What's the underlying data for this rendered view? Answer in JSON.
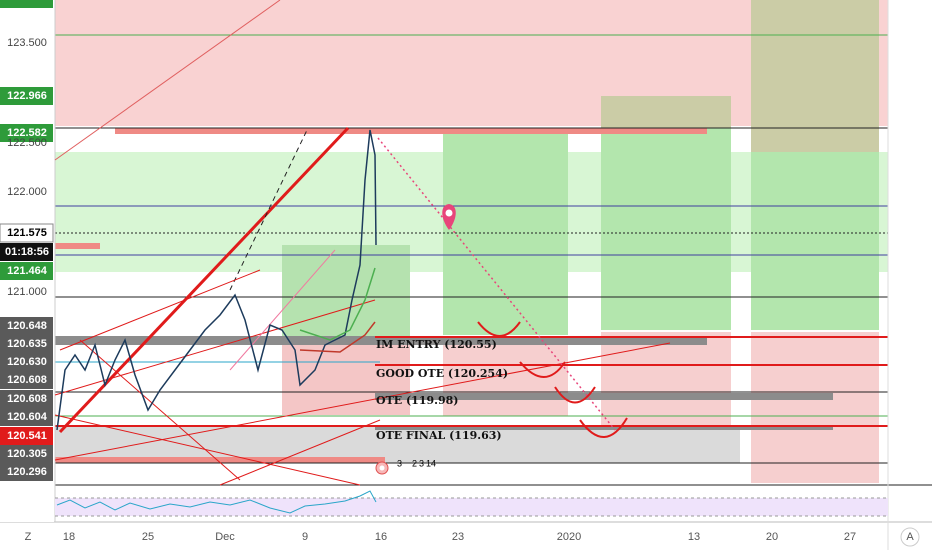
{
  "price_axis": {
    "labels": [
      "123.500",
      "122.966",
      "122.582",
      "122.500",
      "122.000",
      "121.575",
      "01:18:56",
      "121.464",
      "121.000",
      "120.648",
      "120.635",
      "120.630",
      "120.608",
      "120.608",
      "120.604",
      "120.541",
      "120.305",
      "120.296"
    ]
  },
  "time_axis": {
    "labels": [
      "18",
      "25",
      "Dec",
      "9",
      "16",
      "23",
      "2020",
      "13",
      "20",
      "27"
    ]
  },
  "annotations": [
    "IM ENTRY (120.55)",
    "GOOD OTE (120.254)",
    "OTE (119.98)",
    "OTE FINAL (119.63)"
  ],
  "event_badges": [
    "3",
    "2",
    "3",
    "14"
  ],
  "corner_labels": {
    "left": "Z",
    "right": "A"
  }
}
